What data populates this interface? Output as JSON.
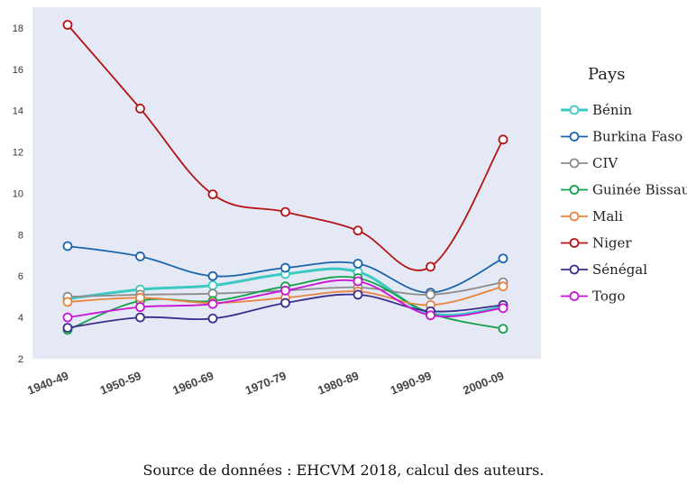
{
  "chart_data": {
    "type": "line",
    "categories": [
      "1940-49",
      "1950-59",
      "1960-69",
      "1970-79",
      "1980-89",
      "1990-99",
      "2000-09"
    ],
    "ylim": [
      2,
      19
    ],
    "yticks": [
      2,
      4,
      6,
      8,
      10,
      12,
      14,
      16,
      18
    ],
    "legend_title": "Pays",
    "legend_position": "right",
    "grid": false,
    "series": [
      {
        "name": "Bénin",
        "color": "#3cc9c1",
        "values": [
          4.9,
          5.35,
          5.55,
          6.1,
          6.2,
          4.2,
          4.5
        ],
        "bold": true
      },
      {
        "name": "Burkina Faso",
        "color": "#1a64ac",
        "values": [
          7.45,
          6.95,
          6.0,
          6.4,
          6.6,
          5.2,
          6.85
        ]
      },
      {
        "name": "CIV",
        "color": "#8c8c8c",
        "values": [
          5.0,
          5.1,
          5.15,
          5.3,
          5.45,
          5.1,
          5.7
        ]
      },
      {
        "name": "Guinée Bissau",
        "color": "#14a04a",
        "values": [
          3.4,
          4.8,
          4.8,
          5.5,
          5.9,
          4.2,
          3.45
        ]
      },
      {
        "name": "Mali",
        "color": "#e8843c",
        "values": [
          4.75,
          4.95,
          4.7,
          4.95,
          5.25,
          4.6,
          5.5
        ]
      },
      {
        "name": "Niger",
        "color": "#b41414",
        "values": [
          18.15,
          14.1,
          9.95,
          9.1,
          8.2,
          6.45,
          12.6
        ]
      },
      {
        "name": "Sénégal",
        "color": "#3c2e8c",
        "values": [
          3.5,
          4.0,
          3.95,
          4.7,
          5.1,
          4.3,
          4.6
        ]
      },
      {
        "name": "Togo",
        "color": "#c814d6",
        "values": [
          4.0,
          4.5,
          4.65,
          5.3,
          5.75,
          4.1,
          4.45
        ]
      }
    ],
    "caption": "Source de données : EHCVM 2018, calcul des auteurs."
  }
}
